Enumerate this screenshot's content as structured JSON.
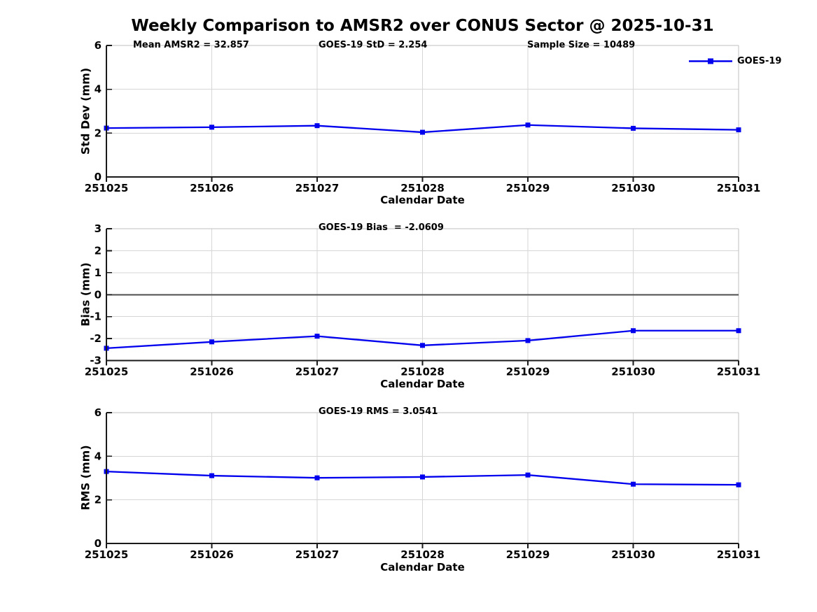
{
  "title": "Weekly Comparison to AMSR2 over CONUS Sector @ 2025-10-31",
  "legend": {
    "label": "GOES-19",
    "position": "top-right"
  },
  "colors": {
    "series": "#0000EE",
    "grid": "#d6d6d6",
    "spine_light": "#bfbfbf",
    "spine_dark": "#1a1a1a",
    "zero_line": "#4d4d4d",
    "text": "#000000",
    "background": "#ffffff"
  },
  "chart_data": [
    {
      "type": "line",
      "name": "std_dev",
      "x": [
        251025,
        251026,
        251027,
        251028,
        251029,
        251030,
        251031
      ],
      "series": [
        {
          "name": "GOES-19",
          "values": [
            2.23,
            2.27,
            2.34,
            2.04,
            2.37,
            2.22,
            2.15
          ]
        }
      ],
      "xlabel": "Calendar Date",
      "ylabel": "Std Dev (mm)",
      "ylim": [
        0,
        6
      ],
      "yticks": [
        0,
        2,
        4,
        6
      ],
      "grid": true,
      "zero_line": false,
      "annotations": [
        "Mean AMSR2 = 32.857",
        "GOES-19 StD = 2.254",
        "Sample Size = 10489"
      ],
      "stats": {
        "mean_amsr2": 32.857,
        "goes19_std": 2.254,
        "sample_size": 10489
      }
    },
    {
      "type": "line",
      "name": "bias",
      "x": [
        251025,
        251026,
        251027,
        251028,
        251029,
        251030,
        251031
      ],
      "series": [
        {
          "name": "GOES-19",
          "values": [
            -2.44,
            -2.15,
            -1.89,
            -2.31,
            -2.09,
            -1.64,
            -1.64
          ]
        }
      ],
      "xlabel": "Calendar Date",
      "ylabel": "Bias (mm)",
      "ylim": [
        -3,
        3
      ],
      "yticks": [
        -3,
        -2,
        -1,
        0,
        1,
        2,
        3
      ],
      "grid": true,
      "zero_line": true,
      "annotations": [
        "GOES-19 Bias  = -2.0609"
      ],
      "stats": {
        "goes19_bias": -2.0609
      }
    },
    {
      "type": "line",
      "name": "rms",
      "x": [
        251025,
        251026,
        251027,
        251028,
        251029,
        251030,
        251031
      ],
      "series": [
        {
          "name": "GOES-19",
          "values": [
            3.3,
            3.11,
            3.01,
            3.05,
            3.14,
            2.72,
            2.69
          ]
        }
      ],
      "xlabel": "Calendar Date",
      "ylabel": "RMS (mm)",
      "ylim": [
        0,
        6
      ],
      "yticks": [
        0,
        2,
        4,
        6
      ],
      "grid": true,
      "zero_line": false,
      "annotations": [
        "GOES-19 RMS = 3.0541"
      ],
      "stats": {
        "goes19_rms": 3.0541
      }
    }
  ]
}
